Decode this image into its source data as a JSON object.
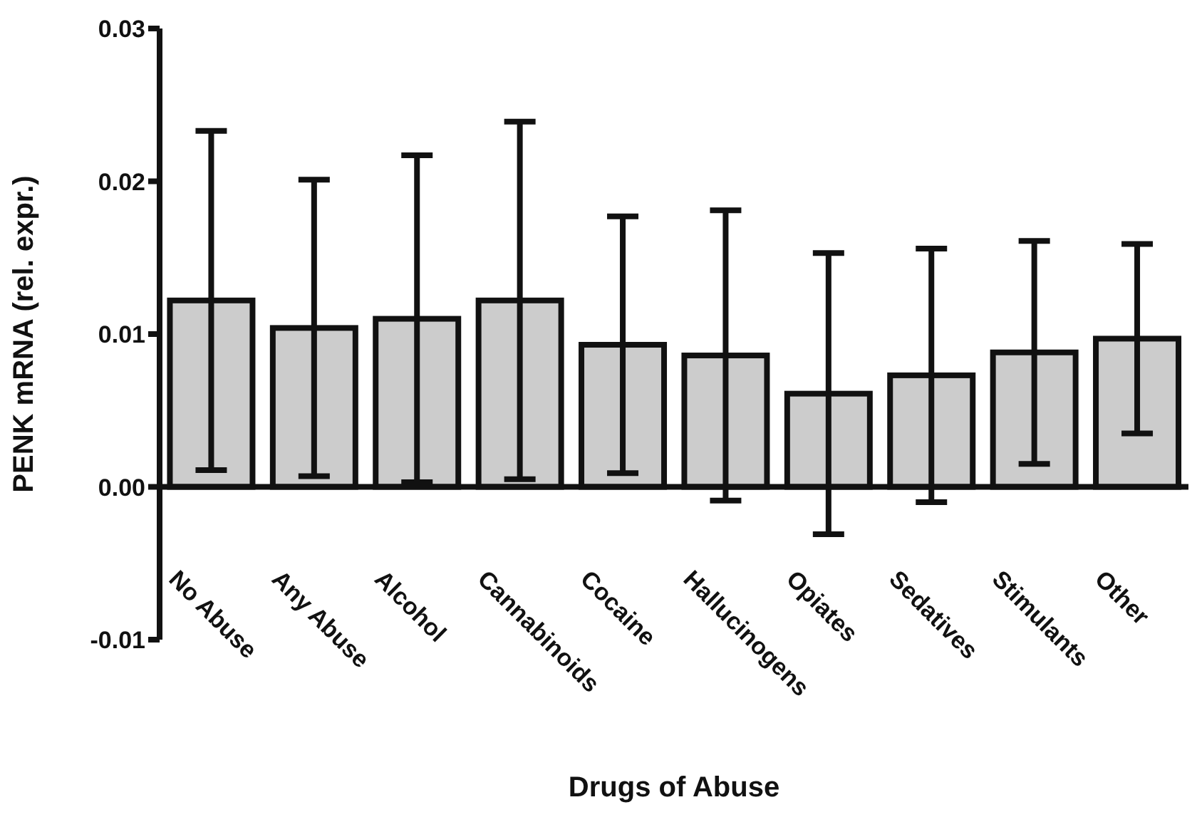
{
  "chart_data": {
    "type": "bar",
    "xlabel": "Drugs of Abuse",
    "ylabel": "PENK mRNA (rel. expr.)",
    "categories": [
      "No Abuse",
      "Any Abuse",
      "Alcohol",
      "Cannabinoids",
      "Cocaine",
      "Hallucinogens",
      "Opiates",
      "Sedatives",
      "Stimulants",
      "Other"
    ],
    "values": [
      0.0122,
      0.0104,
      0.011,
      0.0122,
      0.0093,
      0.0086,
      0.0061,
      0.0073,
      0.0088,
      0.0097
    ],
    "errors": [
      0.0111,
      0.0097,
      0.0107,
      0.0117,
      0.0084,
      0.0095,
      0.0092,
      0.0083,
      0.0073,
      0.0062
    ],
    "color": "#cccccc",
    "ylim": [
      -0.01,
      0.03
    ],
    "yticks": [
      {
        "value": -0.01,
        "label": "-0.01"
      },
      {
        "value": 0,
        "label": "0.00"
      },
      {
        "value": 0.01,
        "label": "0.01"
      },
      {
        "value": 0.02,
        "label": "0.02"
      },
      {
        "value": 0.03,
        "label": "0.03"
      }
    ],
    "legend": false
  }
}
